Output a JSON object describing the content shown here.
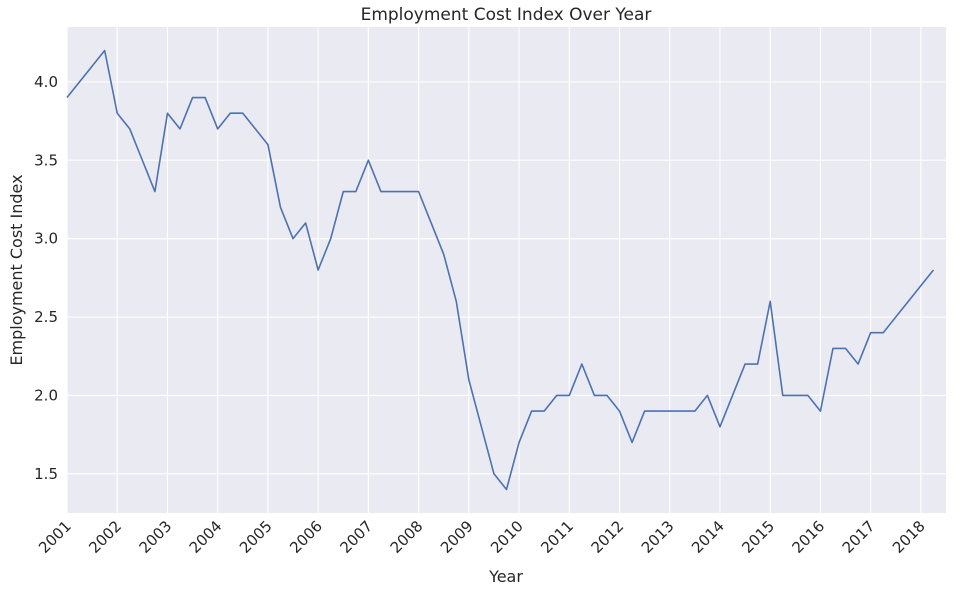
{
  "chart_data": {
    "type": "line",
    "title": "Employment Cost Index Over Year",
    "xlabel": "Year",
    "ylabel": "Employment Cost Index",
    "xlim": [
      2001,
      2018.5
    ],
    "ylim": [
      1.25,
      4.35
    ],
    "grid": true,
    "x_ticks": [
      "2001",
      "2002",
      "2003",
      "2004",
      "2005",
      "2006",
      "2007",
      "2008",
      "2009",
      "2010",
      "2011",
      "2012",
      "2013",
      "2014",
      "2015",
      "2016",
      "2017",
      "2018"
    ],
    "y_ticks": [
      "1.5",
      "2.0",
      "2.5",
      "3.0",
      "3.5",
      "4.0"
    ],
    "series": [
      {
        "color": "#4c72b0",
        "points": [
          [
            2001.0,
            3.9
          ],
          [
            2001.75,
            4.2
          ],
          [
            2002.0,
            3.8
          ],
          [
            2002.25,
            3.7
          ],
          [
            2002.5,
            3.5
          ],
          [
            2002.75,
            3.3
          ],
          [
            2003.0,
            3.8
          ],
          [
            2003.25,
            3.7
          ],
          [
            2003.5,
            3.9
          ],
          [
            2003.75,
            3.9
          ],
          [
            2004.0,
            3.7
          ],
          [
            2004.25,
            3.8
          ],
          [
            2004.5,
            3.8
          ],
          [
            2004.75,
            3.7
          ],
          [
            2005.0,
            3.6
          ],
          [
            2005.25,
            3.2
          ],
          [
            2005.5,
            3.0
          ],
          [
            2005.75,
            3.1
          ],
          [
            2006.0,
            2.8
          ],
          [
            2006.25,
            3.0
          ],
          [
            2006.5,
            3.3
          ],
          [
            2006.75,
            3.3
          ],
          [
            2007.0,
            3.5
          ],
          [
            2007.25,
            3.3
          ],
          [
            2007.5,
            3.3
          ],
          [
            2007.75,
            3.3
          ],
          [
            2008.0,
            3.3
          ],
          [
            2008.25,
            3.1
          ],
          [
            2008.5,
            2.9
          ],
          [
            2008.75,
            2.6
          ],
          [
            2009.0,
            2.1
          ],
          [
            2009.25,
            1.8
          ],
          [
            2009.5,
            1.5
          ],
          [
            2009.75,
            1.4
          ],
          [
            2010.0,
            1.7
          ],
          [
            2010.25,
            1.9
          ],
          [
            2010.5,
            1.9
          ],
          [
            2010.75,
            2.0
          ],
          [
            2011.0,
            2.0
          ],
          [
            2011.25,
            2.2
          ],
          [
            2011.5,
            2.0
          ],
          [
            2011.75,
            2.0
          ],
          [
            2012.0,
            1.9
          ],
          [
            2012.25,
            1.7
          ],
          [
            2012.5,
            1.9
          ],
          [
            2012.75,
            1.9
          ],
          [
            2013.0,
            1.9
          ],
          [
            2013.25,
            1.9
          ],
          [
            2013.5,
            1.9
          ],
          [
            2013.75,
            2.0
          ],
          [
            2014.0,
            1.8
          ],
          [
            2014.25,
            2.0
          ],
          [
            2014.5,
            2.2
          ],
          [
            2014.75,
            2.2
          ],
          [
            2015.0,
            2.6
          ],
          [
            2015.25,
            2.0
          ],
          [
            2015.5,
            2.0
          ],
          [
            2015.75,
            2.0
          ],
          [
            2016.0,
            1.9
          ],
          [
            2016.25,
            2.3
          ],
          [
            2016.5,
            2.3
          ],
          [
            2016.75,
            2.2
          ],
          [
            2017.0,
            2.4
          ],
          [
            2017.25,
            2.4
          ],
          [
            2017.5,
            2.5
          ],
          [
            2017.75,
            2.6
          ],
          [
            2018.0,
            2.7
          ],
          [
            2018.25,
            2.8
          ]
        ]
      }
    ]
  }
}
